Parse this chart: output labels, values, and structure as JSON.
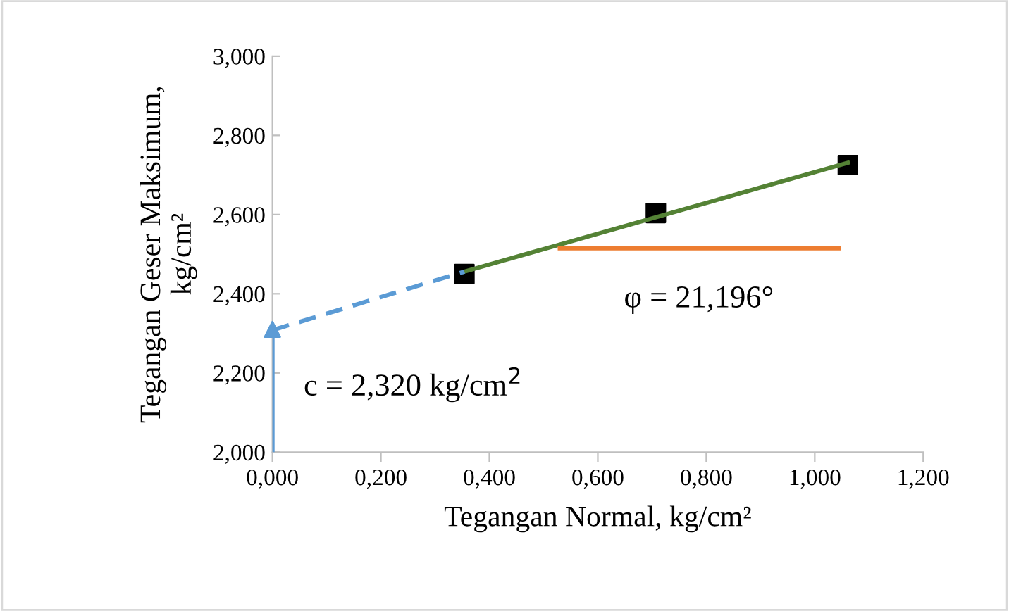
{
  "chart_data": {
    "type": "scatter",
    "xlabel": "Tegangan Normal, kg/cm²",
    "ylabel": "Tegangan Geser Maksimum,\nkg/cm²",
    "xlim": [
      0,
      1.2
    ],
    "ylim": [
      2.0,
      3.0
    ],
    "xticks": [
      {
        "value": 0,
        "label": "0,000"
      },
      {
        "value": 0.2,
        "label": "0,200"
      },
      {
        "value": 0.4,
        "label": "0,400"
      },
      {
        "value": 0.6,
        "label": "0,600"
      },
      {
        "value": 0.8,
        "label": "0,800"
      },
      {
        "value": 1.0,
        "label": "1,000"
      },
      {
        "value": 1.2,
        "label": "1,200"
      }
    ],
    "yticks": [
      {
        "value": 2.0,
        "label": "2,000"
      },
      {
        "value": 2.2,
        "label": "2,200"
      },
      {
        "value": 2.4,
        "label": "2,400"
      },
      {
        "value": 2.6,
        "label": "2,600"
      },
      {
        "value": 2.8,
        "label": "2,800"
      },
      {
        "value": 3.0,
        "label": "3,000"
      }
    ],
    "grid": false,
    "legend": false,
    "series": [
      {
        "marker": "square",
        "color": "#000000",
        "x": [
          0.354,
          0.707,
          1.061
        ],
        "values": [
          2.45,
          2.604,
          2.725
        ]
      },
      {
        "type": "line",
        "marker": "none",
        "color": "#548235",
        "line_style": "solid",
        "x": [
          0.354,
          1.061
        ],
        "values": [
          2.456,
          2.731
        ]
      },
      {
        "type": "line",
        "marker": "none",
        "color": "#5b9bd5",
        "line_style": "dashed",
        "x": [
          0,
          0.354
        ],
        "values": [
          2.308,
          2.456
        ]
      },
      {
        "type": "line",
        "marker": "none",
        "color": "#ed7d31",
        "line_style": "solid",
        "x": [
          0.53,
          1.044
        ],
        "values": [
          2.515,
          2.515
        ]
      },
      {
        "type": "line",
        "marker": "triangle",
        "color": "#5b9bd5",
        "line_style": "solid",
        "x": [
          0,
          0
        ],
        "values": [
          2.0,
          2.31
        ]
      }
    ],
    "annotations": [
      "c = 2,320 kg/cm$^{2}$",
      "φ = 21,196°"
    ]
  }
}
